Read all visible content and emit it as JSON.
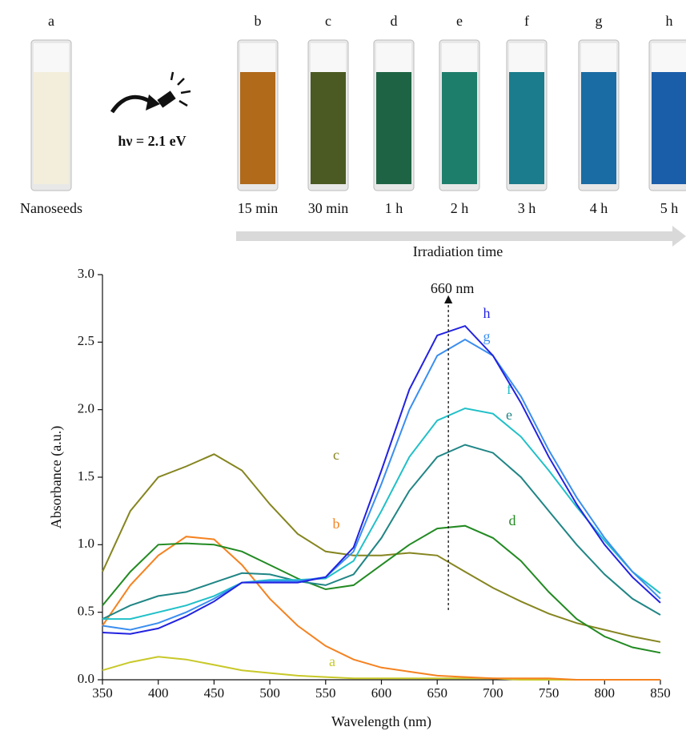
{
  "photos": {
    "samples": [
      {
        "label": "a",
        "caption": "Nanoseeds"
      },
      {
        "label": "b",
        "caption": "15 min"
      },
      {
        "label": "c",
        "caption": "30 min"
      },
      {
        "label": "d",
        "caption": "1 h"
      },
      {
        "label": "e",
        "caption": "2 h"
      },
      {
        "label": "f",
        "caption": "3 h"
      },
      {
        "label": "g",
        "caption": "4 h"
      },
      {
        "label": "h",
        "caption": "5 h"
      }
    ],
    "excitation": "hν = 2.1 eV",
    "time_axis": "Irradiation time"
  },
  "chart_data": {
    "type": "line",
    "xlabel": "Wavelength (nm)",
    "ylabel": "Absorbance (a.u.)",
    "annotation": {
      "text": "660 nm",
      "x": 660
    },
    "xlim": [
      350,
      850
    ],
    "ylim": [
      0,
      3
    ],
    "xticks": [
      350,
      400,
      450,
      500,
      550,
      600,
      650,
      700,
      750,
      800,
      850
    ],
    "yticks": [
      {
        "value": 0,
        "label": "0.0"
      },
      {
        "value": 0.5,
        "label": "0.5"
      },
      {
        "value": 1,
        "label": "1.0"
      },
      {
        "value": 1.5,
        "label": "1.5"
      },
      {
        "value": 2,
        "label": "2.0"
      },
      {
        "value": 2.5,
        "label": "2.5"
      },
      {
        "value": 3,
        "label": "3.0"
      }
    ],
    "x": [
      350,
      375,
      400,
      425,
      450,
      475,
      500,
      525,
      550,
      575,
      600,
      625,
      650,
      675,
      700,
      725,
      750,
      775,
      800,
      825,
      850
    ],
    "series": [
      {
        "name": "a",
        "color": "#c8c828",
        "values": [
          0.07,
          0.13,
          0.17,
          0.15,
          0.11,
          0.07,
          0.05,
          0.03,
          0.02,
          0.01,
          0.01,
          0.01,
          0.01,
          0.01,
          0.01,
          0,
          0,
          0,
          0,
          0,
          0
        ]
      },
      {
        "name": "b",
        "color": "#f58220",
        "values": [
          0.4,
          0.7,
          0.92,
          1.06,
          1.04,
          0.85,
          0.6,
          0.4,
          0.25,
          0.15,
          0.09,
          0.06,
          0.03,
          0.02,
          0.01,
          0.01,
          0.01,
          0,
          0,
          0,
          0
        ]
      },
      {
        "name": "c",
        "color": "#858520",
        "values": [
          0.8,
          1.25,
          1.5,
          1.58,
          1.67,
          1.55,
          1.3,
          1.08,
          0.95,
          0.92,
          0.92,
          0.94,
          0.92,
          0.8,
          0.68,
          0.58,
          0.49,
          0.42,
          0.37,
          0.32,
          0.28
        ]
      },
      {
        "name": "d",
        "color": "#228a22",
        "values": [
          0.55,
          0.8,
          1.0,
          1.01,
          1.0,
          0.95,
          0.85,
          0.75,
          0.67,
          0.7,
          0.85,
          1.0,
          1.12,
          1.14,
          1.05,
          0.88,
          0.65,
          0.45,
          0.32,
          0.24,
          0.2
        ]
      },
      {
        "name": "e",
        "color": "#208585",
        "values": [
          0.45,
          0.55,
          0.62,
          0.65,
          0.72,
          0.79,
          0.78,
          0.73,
          0.7,
          0.78,
          1.05,
          1.4,
          1.65,
          1.74,
          1.68,
          1.5,
          1.25,
          1.0,
          0.78,
          0.6,
          0.48
        ]
      },
      {
        "name": "f",
        "color": "#20c0c8",
        "values": [
          0.45,
          0.45,
          0.5,
          0.55,
          0.62,
          0.72,
          0.74,
          0.74,
          0.75,
          0.88,
          1.25,
          1.65,
          1.92,
          2.01,
          1.97,
          1.8,
          1.55,
          1.28,
          1.03,
          0.8,
          0.64
        ]
      },
      {
        "name": "g",
        "color": "#3a8ef0",
        "values": [
          0.4,
          0.37,
          0.42,
          0.5,
          0.6,
          0.72,
          0.73,
          0.73,
          0.76,
          0.95,
          1.45,
          2.0,
          2.4,
          2.52,
          2.4,
          2.1,
          1.7,
          1.35,
          1.05,
          0.8,
          0.6
        ]
      },
      {
        "name": "h",
        "color": "#2222e0",
        "values": [
          0.35,
          0.34,
          0.38,
          0.47,
          0.58,
          0.72,
          0.72,
          0.72,
          0.76,
          0.98,
          1.55,
          2.15,
          2.55,
          2.62,
          2.4,
          2.05,
          1.65,
          1.3,
          1.0,
          0.76,
          0.57
        ]
      }
    ]
  }
}
